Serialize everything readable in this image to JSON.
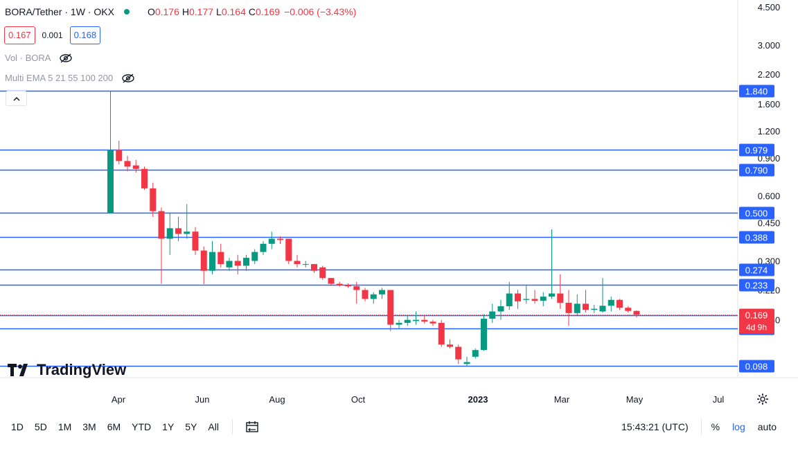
{
  "header": {
    "symbol": "BORA/Tether · 1W · OKX",
    "open_label": "O",
    "open": "0.176",
    "high_label": "H",
    "high": "0.177",
    "low_label": "L",
    "low": "0.164",
    "close_label": "C",
    "close": "0.169",
    "change": "−0.006 (−3.43%)"
  },
  "quote": {
    "bid": "0.167",
    "spread": "0.001",
    "ask": "0.168"
  },
  "indicators": [
    {
      "label": "Vol · BORA",
      "icon": "eye-off-icon"
    },
    {
      "label": "Multi EMA 5 21 55 100 200",
      "icon": "eye-off-icon"
    }
  ],
  "logo": {
    "text": "TradingView"
  },
  "timeframes": [
    "1D",
    "5D",
    "1M",
    "3M",
    "6M",
    "YTD",
    "1Y",
    "5Y",
    "All"
  ],
  "status": {
    "clock": "15:43:21 (UTC)",
    "percent": "%",
    "log": "log",
    "auto": "auto"
  },
  "colors": {
    "up": "#089981",
    "down": "#f23645",
    "line": "#2962ff",
    "price": "#f23645"
  },
  "chart_data": {
    "type": "candlestick",
    "scale": "log",
    "x_ticks": [
      "Apr",
      "Jun",
      "Aug",
      "Oct",
      "2023",
      "Mar",
      "May",
      "Jul"
    ],
    "y_ticks": [
      "4.500",
      "3.000",
      "2.200",
      "1.600",
      "1.200",
      "0.900",
      "0.600",
      "0.450",
      "0.300",
      "0.220",
      "0.160"
    ],
    "horizontal_levels": [
      "1.840",
      "0.979",
      "0.790",
      "0.500",
      "0.388",
      "0.274",
      "0.233",
      "0.146",
      "0.098"
    ],
    "last_price": {
      "value": "0.169",
      "countdown": "4d 9h",
      "color": "#f23645"
    },
    "ask_price": {
      "value": "0.168"
    },
    "candles": [
      {
        "o": 0.5,
        "h": 1.84,
        "l": 0.5,
        "c": 0.979
      },
      {
        "o": 0.98,
        "h": 1.08,
        "l": 0.84,
        "c": 0.87
      },
      {
        "o": 0.87,
        "h": 0.92,
        "l": 0.78,
        "c": 0.82
      },
      {
        "o": 0.83,
        "h": 0.88,
        "l": 0.77,
        "c": 0.8
      },
      {
        "o": 0.8,
        "h": 0.82,
        "l": 0.64,
        "c": 0.65
      },
      {
        "o": 0.65,
        "h": 0.69,
        "l": 0.48,
        "c": 0.51
      },
      {
        "o": 0.51,
        "h": 0.53,
        "l": 0.235,
        "c": 0.38
      },
      {
        "o": 0.38,
        "h": 0.5,
        "l": 0.32,
        "c": 0.425
      },
      {
        "o": 0.425,
        "h": 0.48,
        "l": 0.37,
        "c": 0.4
      },
      {
        "o": 0.4,
        "h": 0.55,
        "l": 0.38,
        "c": 0.41
      },
      {
        "o": 0.41,
        "h": 0.43,
        "l": 0.32,
        "c": 0.335
      },
      {
        "o": 0.335,
        "h": 0.35,
        "l": 0.234,
        "c": 0.27
      },
      {
        "o": 0.27,
        "h": 0.37,
        "l": 0.26,
        "c": 0.33
      },
      {
        "o": 0.33,
        "h": 0.36,
        "l": 0.28,
        "c": 0.29
      },
      {
        "o": 0.28,
        "h": 0.31,
        "l": 0.27,
        "c": 0.3
      },
      {
        "o": 0.3,
        "h": 0.32,
        "l": 0.26,
        "c": 0.285
      },
      {
        "o": 0.285,
        "h": 0.32,
        "l": 0.27,
        "c": 0.31
      },
      {
        "o": 0.3,
        "h": 0.34,
        "l": 0.29,
        "c": 0.33
      },
      {
        "o": 0.33,
        "h": 0.37,
        "l": 0.32,
        "c": 0.36
      },
      {
        "o": 0.36,
        "h": 0.41,
        "l": 0.34,
        "c": 0.38
      },
      {
        "o": 0.38,
        "h": 0.39,
        "l": 0.36,
        "c": 0.375
      },
      {
        "o": 0.38,
        "h": 0.38,
        "l": 0.29,
        "c": 0.3
      },
      {
        "o": 0.3,
        "h": 0.32,
        "l": 0.28,
        "c": 0.29
      },
      {
        "o": 0.29,
        "h": 0.3,
        "l": 0.28,
        "c": 0.29
      },
      {
        "o": 0.29,
        "h": 0.29,
        "l": 0.264,
        "c": 0.27
      },
      {
        "o": 0.28,
        "h": 0.285,
        "l": 0.245,
        "c": 0.25
      },
      {
        "o": 0.25,
        "h": 0.25,
        "l": 0.23,
        "c": 0.235
      },
      {
        "o": 0.235,
        "h": 0.24,
        "l": 0.228,
        "c": 0.232
      },
      {
        "o": 0.232,
        "h": 0.236,
        "l": 0.225,
        "c": 0.229
      },
      {
        "o": 0.229,
        "h": 0.24,
        "l": 0.19,
        "c": 0.22
      },
      {
        "o": 0.22,
        "h": 0.225,
        "l": 0.195,
        "c": 0.2
      },
      {
        "o": 0.2,
        "h": 0.215,
        "l": 0.19,
        "c": 0.21
      },
      {
        "o": 0.21,
        "h": 0.225,
        "l": 0.2,
        "c": 0.22
      },
      {
        "o": 0.22,
        "h": 0.22,
        "l": 0.142,
        "c": 0.152
      },
      {
        "o": 0.152,
        "h": 0.16,
        "l": 0.145,
        "c": 0.155
      },
      {
        "o": 0.155,
        "h": 0.168,
        "l": 0.15,
        "c": 0.16
      },
      {
        "o": 0.158,
        "h": 0.175,
        "l": 0.152,
        "c": 0.16
      },
      {
        "o": 0.16,
        "h": 0.167,
        "l": 0.154,
        "c": 0.157
      },
      {
        "o": 0.157,
        "h": 0.16,
        "l": 0.15,
        "c": 0.154
      },
      {
        "o": 0.155,
        "h": 0.16,
        "l": 0.12,
        "c": 0.123
      },
      {
        "o": 0.123,
        "h": 0.13,
        "l": 0.118,
        "c": 0.12
      },
      {
        "o": 0.12,
        "h": 0.123,
        "l": 0.1,
        "c": 0.105
      },
      {
        "o": 0.1,
        "h": 0.108,
        "l": 0.097,
        "c": 0.102
      },
      {
        "o": 0.108,
        "h": 0.118,
        "l": 0.106,
        "c": 0.116
      },
      {
        "o": 0.116,
        "h": 0.17,
        "l": 0.115,
        "c": 0.162
      },
      {
        "o": 0.162,
        "h": 0.19,
        "l": 0.155,
        "c": 0.175
      },
      {
        "o": 0.175,
        "h": 0.198,
        "l": 0.16,
        "c": 0.185
      },
      {
        "o": 0.185,
        "h": 0.24,
        "l": 0.178,
        "c": 0.212
      },
      {
        "o": 0.212,
        "h": 0.22,
        "l": 0.18,
        "c": 0.195
      },
      {
        "o": 0.198,
        "h": 0.23,
        "l": 0.19,
        "c": 0.2
      },
      {
        "o": 0.2,
        "h": 0.22,
        "l": 0.19,
        "c": 0.196
      },
      {
        "o": 0.196,
        "h": 0.215,
        "l": 0.185,
        "c": 0.205
      },
      {
        "o": 0.205,
        "h": 0.42,
        "l": 0.2,
        "c": 0.212
      },
      {
        "o": 0.212,
        "h": 0.26,
        "l": 0.18,
        "c": 0.192
      },
      {
        "o": 0.192,
        "h": 0.22,
        "l": 0.15,
        "c": 0.172
      },
      {
        "o": 0.172,
        "h": 0.21,
        "l": 0.168,
        "c": 0.19
      },
      {
        "o": 0.19,
        "h": 0.22,
        "l": 0.173,
        "c": 0.178
      },
      {
        "o": 0.178,
        "h": 0.188,
        "l": 0.172,
        "c": 0.18
      },
      {
        "o": 0.175,
        "h": 0.25,
        "l": 0.173,
        "c": 0.186
      },
      {
        "o": 0.186,
        "h": 0.205,
        "l": 0.175,
        "c": 0.198
      },
      {
        "o": 0.198,
        "h": 0.2,
        "l": 0.178,
        "c": 0.182
      },
      {
        "o": 0.182,
        "h": 0.185,
        "l": 0.173,
        "c": 0.176
      },
      {
        "o": 0.176,
        "h": 0.177,
        "l": 0.164,
        "c": 0.169
      }
    ]
  }
}
